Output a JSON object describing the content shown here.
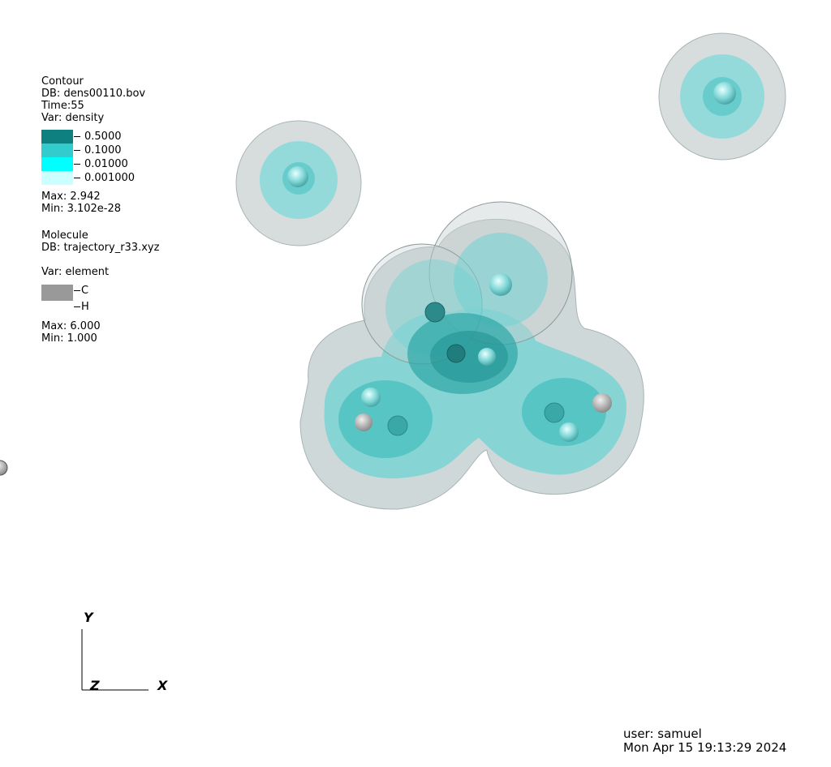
{
  "contour_legend": {
    "plot_type": "Contour",
    "db": "DB: dens00110.bov",
    "time": "Time:55",
    "var": "Var: density",
    "levels": [
      {
        "label": "0.5000",
        "color": "#0f8080"
      },
      {
        "label": "0.1000",
        "color": "#33cccc"
      },
      {
        "label": "0.01000",
        "color": "#00ffff"
      },
      {
        "label": "0.001000",
        "color": "#ccffff"
      }
    ],
    "max": "Max:  2.942",
    "min": "Min:  3.102e-28"
  },
  "molecule_legend": {
    "plot_type": "Molecule",
    "db": "DB: trajectory_r33.xyz",
    "var": "Var: element",
    "elements": [
      {
        "label": "C",
        "color": "#999999"
      },
      {
        "label": "H",
        "color": "#ffffff"
      }
    ],
    "max": "Max:  6.000",
    "min": "Min:  1.000"
  },
  "axes": {
    "y": "Y",
    "z": "Z",
    "x": "X"
  },
  "footer": {
    "user": "user: samuel",
    "date": "Mon Apr 15 19:13:29 2024"
  }
}
